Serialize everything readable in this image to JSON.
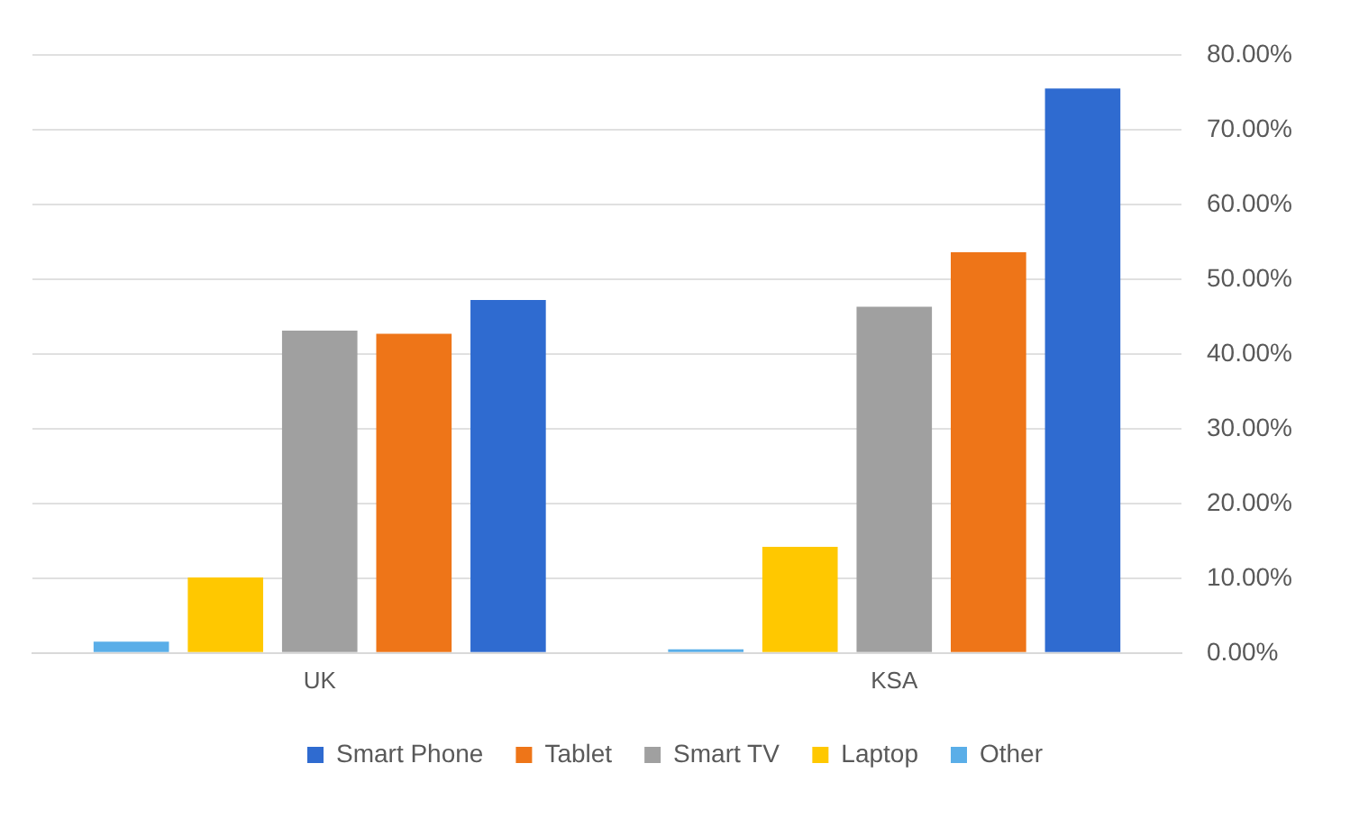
{
  "chart_data": {
    "type": "bar",
    "categories": [
      "UK",
      "KSA"
    ],
    "series": [
      {
        "name": "Other",
        "color": "#5aaee8",
        "values": [
          1.5,
          0.5
        ]
      },
      {
        "name": "Laptop",
        "color": "#ffc800",
        "values": [
          10.1,
          14.2
        ]
      },
      {
        "name": "Smart TV",
        "color": "#a0a0a0",
        "values": [
          43.1,
          46.3
        ]
      },
      {
        "name": "Tablet",
        "color": "#ee7518",
        "values": [
          42.7,
          53.6
        ]
      },
      {
        "name": "Smart Phone",
        "color": "#2f6bd0",
        "values": [
          47.2,
          75.5
        ]
      }
    ],
    "ylim": [
      0,
      80
    ],
    "yticks": [
      {
        "value": 0,
        "label": "0.00%"
      },
      {
        "value": 10,
        "label": "10.00%"
      },
      {
        "value": 20,
        "label": "20.00%"
      },
      {
        "value": 30,
        "label": "30.00%"
      },
      {
        "value": 40,
        "label": "40.00%"
      },
      {
        "value": 50,
        "label": "50.00%"
      },
      {
        "value": 60,
        "label": "60.00%"
      },
      {
        "value": 70,
        "label": "70.00%"
      },
      {
        "value": 80,
        "label": "80.00%"
      }
    ],
    "grid": "y",
    "legend": "bottom"
  }
}
